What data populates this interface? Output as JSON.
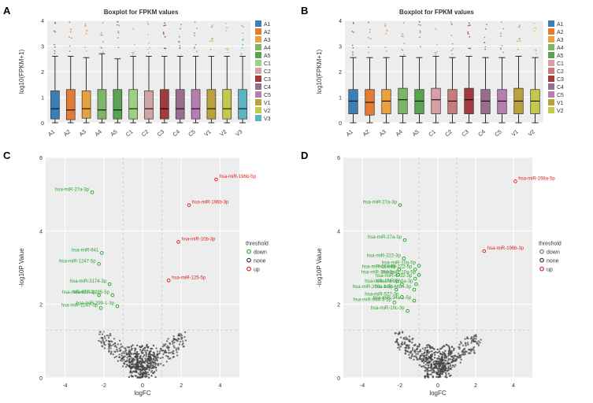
{
  "panelA": {
    "label": "A",
    "title": "Boxplot for FPKM values",
    "ylabel": "log10(FPKM+1)",
    "ylim": [
      0,
      4
    ],
    "yticks": [
      0,
      1,
      2,
      3,
      4
    ],
    "categories": [
      "A1",
      "A2",
      "A3",
      "A4",
      "A5",
      "C1",
      "C2",
      "C3",
      "C4",
      "C5",
      "V1",
      "V2",
      "V3"
    ],
    "colors": {
      "A1": "#3b7fb6",
      "A2": "#e27b35",
      "A3": "#e7a23d",
      "A4": "#7db66a",
      "A5": "#5aa352",
      "C1": "#9fcf84",
      "C2": "#d0a3a5",
      "C3": "#a13b3d",
      "C4": "#9a6d8e",
      "C5": "#b87db0",
      "V1": "#bba13c",
      "V2": "#c4c94b",
      "V3": "#5ab4c2"
    },
    "boxes": {
      "A1": {
        "min": 0.0,
        "q1": 0.15,
        "med": 0.55,
        "q3": 1.25,
        "max": 2.6
      },
      "A2": {
        "min": 0.0,
        "q1": 0.12,
        "med": 0.5,
        "q3": 1.3,
        "max": 2.6
      },
      "A3": {
        "min": 0.0,
        "q1": 0.18,
        "med": 0.55,
        "q3": 1.25,
        "max": 2.55
      },
      "A4": {
        "min": 0.0,
        "q1": 0.15,
        "med": 0.5,
        "q3": 1.3,
        "max": 2.7
      },
      "A5": {
        "min": 0.0,
        "q1": 0.15,
        "med": 0.5,
        "q3": 1.3,
        "max": 2.5
      },
      "C1": {
        "min": 0.0,
        "q1": 0.15,
        "med": 0.55,
        "q3": 1.3,
        "max": 2.6
      },
      "C2": {
        "min": 0.0,
        "q1": 0.15,
        "med": 0.55,
        "q3": 1.25,
        "max": 2.6
      },
      "C3": {
        "min": 0.0,
        "q1": 0.15,
        "med": 0.55,
        "q3": 1.3,
        "max": 2.6
      },
      "C4": {
        "min": 0.0,
        "q1": 0.15,
        "med": 0.55,
        "q3": 1.3,
        "max": 2.6
      },
      "C5": {
        "min": 0.0,
        "q1": 0.15,
        "med": 0.55,
        "q3": 1.3,
        "max": 2.6
      },
      "V1": {
        "min": 0.0,
        "q1": 0.15,
        "med": 0.55,
        "q3": 1.3,
        "max": 2.6
      },
      "V2": {
        "min": 0.0,
        "q1": 0.15,
        "med": 0.55,
        "q3": 1.3,
        "max": 2.6
      },
      "V3": {
        "min": 0.0,
        "q1": 0.15,
        "med": 0.55,
        "q3": 1.3,
        "max": 2.6
      }
    }
  },
  "panelB": {
    "label": "B",
    "title": "Boxplot for FPKM values",
    "ylabel": "log10(FPKM+1)",
    "ylim": [
      0,
      4
    ],
    "yticks": [
      0,
      1,
      2,
      3,
      4
    ],
    "categories": [
      "A1",
      "A2",
      "A3",
      "A4",
      "A5",
      "C1",
      "C2",
      "C3",
      "C4",
      "C5",
      "V1",
      "V2"
    ],
    "colors": {
      "A1": "#3b7fb6",
      "A2": "#e27b35",
      "A3": "#e7a23d",
      "A4": "#7db66a",
      "A5": "#5aa352",
      "C1": "#d99ea6",
      "C2": "#c77b7a",
      "C3": "#a13b3d",
      "C4": "#9a6d8e",
      "C5": "#b87db0",
      "V1": "#bba13c",
      "V2": "#c4c94b"
    },
    "boxes": {
      "A1": {
        "min": 0.0,
        "q1": 0.35,
        "med": 0.85,
        "q3": 1.3,
        "max": 2.55
      },
      "A2": {
        "min": 0.0,
        "q1": 0.3,
        "med": 0.8,
        "q3": 1.3,
        "max": 2.55
      },
      "A3": {
        "min": 0.0,
        "q1": 0.35,
        "med": 0.85,
        "q3": 1.3,
        "max": 2.55
      },
      "A4": {
        "min": 0.0,
        "q1": 0.35,
        "med": 0.9,
        "q3": 1.35,
        "max": 2.6
      },
      "A5": {
        "min": 0.0,
        "q1": 0.35,
        "med": 0.85,
        "q3": 1.3,
        "max": 2.55
      },
      "C1": {
        "min": 0.0,
        "q1": 0.35,
        "med": 0.9,
        "q3": 1.35,
        "max": 2.6
      },
      "C2": {
        "min": 0.0,
        "q1": 0.35,
        "med": 0.85,
        "q3": 1.3,
        "max": 2.55
      },
      "C3": {
        "min": 0.0,
        "q1": 0.35,
        "med": 0.9,
        "q3": 1.35,
        "max": 2.6
      },
      "C4": {
        "min": 0.0,
        "q1": 0.35,
        "med": 0.85,
        "q3": 1.3,
        "max": 2.55
      },
      "C5": {
        "min": 0.0,
        "q1": 0.35,
        "med": 0.85,
        "q3": 1.3,
        "max": 2.55
      },
      "V1": {
        "min": 0.0,
        "q1": 0.35,
        "med": 0.85,
        "q3": 1.35,
        "max": 2.6
      },
      "V2": {
        "min": 0.0,
        "q1": 0.35,
        "med": 0.85,
        "q3": 1.3,
        "max": 2.55
      }
    }
  },
  "volcano_common": {
    "xlabel": "logFC",
    "ylabel": "-log10P Value",
    "xlim": [
      -5,
      5
    ],
    "xticks": [
      -4,
      -2,
      0,
      2,
      4
    ],
    "ylim": [
      0,
      6
    ],
    "yticks": [
      0,
      2,
      4,
      6
    ],
    "grid_color": "#cccccc",
    "threshold_x_neg": -1,
    "threshold_x_pos": 1,
    "threshold_y": 1.3,
    "legend_title": "threshold",
    "legend_items": [
      {
        "label": "down",
        "color": "#29a329"
      },
      {
        "label": "none",
        "color": "#333333"
      },
      {
        "label": "up",
        "color": "#e02020"
      }
    ],
    "colors": {
      "down": "#29a329",
      "none": "#444444",
      "up": "#e02020"
    }
  },
  "panelC": {
    "label": "C",
    "labeled_points": [
      {
        "x": 3.8,
        "y": 5.4,
        "t": "up",
        "name": "hsa-miR-196b-5p"
      },
      {
        "x": -2.6,
        "y": 5.05,
        "t": "down",
        "name": "hsa-miR-27a-3p"
      },
      {
        "x": 2.4,
        "y": 4.7,
        "t": "up",
        "name": "hsa-miR-196b-3p"
      },
      {
        "x": 1.85,
        "y": 3.7,
        "t": "up",
        "name": "hsa-miR-10b-3p"
      },
      {
        "x": -2.1,
        "y": 3.4,
        "t": "down",
        "name": "hsa-miR-941"
      },
      {
        "x": -2.25,
        "y": 3.1,
        "t": "down",
        "name": "hsa-miR-1247-5p"
      },
      {
        "x": 1.35,
        "y": 2.65,
        "t": "up",
        "name": "hsa-miR-125-5p"
      },
      {
        "x": -1.7,
        "y": 2.55,
        "t": "down",
        "name": "hsa-miR-3174-3p"
      },
      {
        "x": -2.25,
        "y": 2.25,
        "t": "down",
        "name": "hsa-miR-671-3p"
      },
      {
        "x": -1.55,
        "y": 2.25,
        "t": "down",
        "name": "hsa-miR-1285-5p"
      },
      {
        "x": -2.15,
        "y": 1.9,
        "t": "down",
        "name": "hsa-miR-1247-3p"
      },
      {
        "x": -1.3,
        "y": 1.95,
        "t": "down",
        "name": "hsa-miR-299-1-3p"
      }
    ]
  },
  "panelD": {
    "label": "D",
    "labeled_points": [
      {
        "x": 4.1,
        "y": 5.35,
        "t": "up",
        "name": "hsa-miR-198a-5p"
      },
      {
        "x": -2.0,
        "y": 4.7,
        "t": "down",
        "name": "hsa-miR-27a-3p"
      },
      {
        "x": -1.75,
        "y": 3.75,
        "t": "down",
        "name": "hsa-miR-27a-3p"
      },
      {
        "x": 2.45,
        "y": 3.45,
        "t": "up",
        "name": "hsa-miR-196b-3p"
      },
      {
        "x": -1.8,
        "y": 3.25,
        "t": "down",
        "name": "hsa-miR-222-3p"
      },
      {
        "x": -1.0,
        "y": 3.05,
        "t": "down",
        "name": "hsa-miR-10a-5p"
      },
      {
        "x": -2.05,
        "y": 2.95,
        "t": "down",
        "name": "hsa-miR-224-5p"
      },
      {
        "x": -1.2,
        "y": 2.95,
        "t": "down",
        "name": "hsa-miR-222-5p"
      },
      {
        "x": -1.0,
        "y": 2.8,
        "t": "down",
        "name": "hsa-miR-10a-5p"
      },
      {
        "x": -2.1,
        "y": 2.8,
        "t": "down",
        "name": "hsa-miR-184-5p"
      },
      {
        "x": -1.2,
        "y": 2.7,
        "t": "down",
        "name": "hsa-miR-4732-3p"
      },
      {
        "x": -1.9,
        "y": 2.55,
        "t": "down",
        "name": "hsa-miR-175-3p"
      },
      {
        "x": -1.15,
        "y": 2.55,
        "t": "down",
        "name": "hsa-miR-550a-3p"
      },
      {
        "x": -2.2,
        "y": 2.4,
        "t": "down",
        "name": "hsa-miR-200c-1-5p"
      },
      {
        "x": -1.25,
        "y": 2.4,
        "t": "down",
        "name": "hsa-miR-4484-3p"
      },
      {
        "x": -1.9,
        "y": 2.2,
        "t": "down",
        "name": "hsa-miR-577-3p"
      },
      {
        "x": -2.3,
        "y": 2.05,
        "t": "down",
        "name": "hsa-miR-944-3-5p"
      },
      {
        "x": -1.25,
        "y": 2.1,
        "t": "down",
        "name": "hsa-miR-34a-1-5p"
      },
      {
        "x": -1.6,
        "y": 1.82,
        "t": "down",
        "name": "hsa-miR-10c-3p"
      }
    ]
  }
}
